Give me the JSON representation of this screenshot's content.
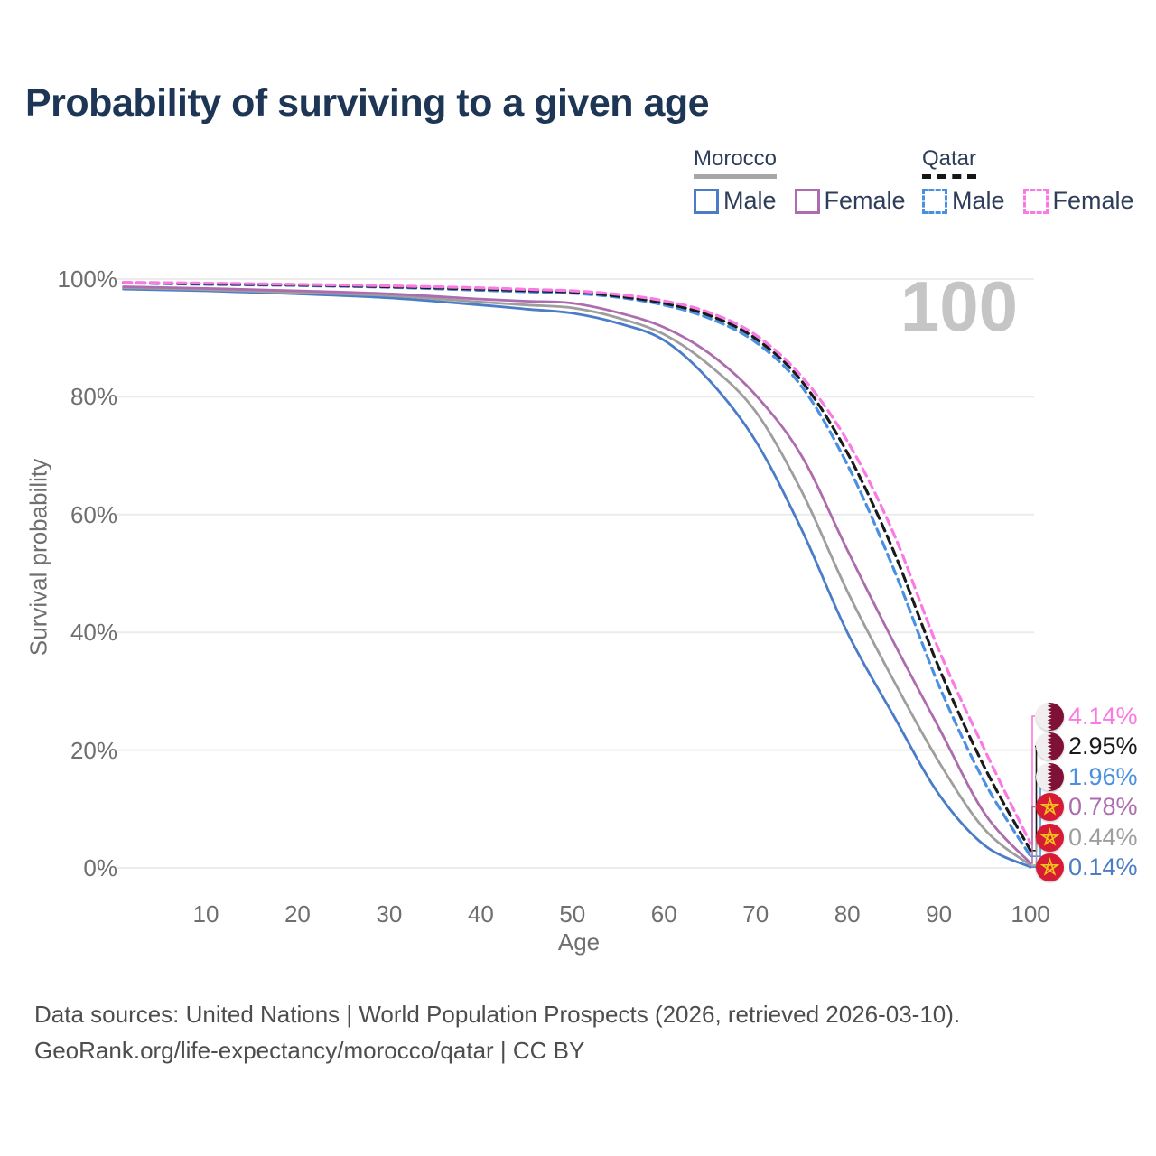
{
  "title": "Probability of surviving to a given age",
  "watermark": "100",
  "legend": {
    "groups": [
      {
        "country": "Morocco",
        "line_style": "solid",
        "items": [
          {
            "label": "Male",
            "color": "#4a7cc7"
          },
          {
            "label": "Female",
            "color": "#ad6cad"
          }
        ]
      },
      {
        "country": "Qatar",
        "line_style": "dashed",
        "items": [
          {
            "label": "Male",
            "color": "#4a90e2"
          },
          {
            "label": "Female",
            "color": "#fb79e3"
          }
        ]
      }
    ]
  },
  "chart_data": {
    "type": "line",
    "title": "Probability of surviving to a given age",
    "xlabel": "Age",
    "ylabel": "Survival probability",
    "xlim": [
      0,
      100
    ],
    "ylim": [
      0,
      100
    ],
    "grid": "horizontal",
    "x_ticks": [
      10,
      20,
      30,
      40,
      50,
      60,
      70,
      80,
      90,
      100
    ],
    "y_ticks": [
      {
        "value": 100,
        "label": "100%"
      },
      {
        "value": 80,
        "label": "80%"
      },
      {
        "value": 60,
        "label": "60%"
      },
      {
        "value": 40,
        "label": "40%"
      },
      {
        "value": 20,
        "label": "20%"
      },
      {
        "value": 0,
        "label": "0%"
      }
    ],
    "hover_age": "100",
    "x": [
      1,
      10,
      20,
      30,
      40,
      45,
      50,
      55,
      60,
      65,
      70,
      75,
      80,
      85,
      90,
      95,
      100
    ],
    "series": [
      {
        "name": "Qatar Female",
        "country": "Qatar",
        "sex": "female",
        "color": "#fb79e3",
        "dash": true,
        "flag": "qatar",
        "end_label": "4.14%",
        "values": [
          99.45,
          99.3,
          99.1,
          98.85,
          98.5,
          98.25,
          98.0,
          97.4,
          96.3,
          94.3,
          90.5,
          83.5,
          72.5,
          57.0,
          37.0,
          20.0,
          4.14
        ]
      },
      {
        "name": "Qatar Both sexes",
        "country": "Qatar",
        "sex": "all",
        "color": "#1a1a1a",
        "dash": true,
        "flag": "qatar",
        "end_label": "2.95%",
        "values": [
          99.4,
          99.2,
          99.0,
          98.7,
          98.3,
          98.05,
          97.8,
          97.1,
          95.9,
          93.8,
          89.9,
          82.7,
          70.5,
          54.0,
          34.0,
          17.0,
          2.95
        ]
      },
      {
        "name": "Qatar Male",
        "country": "Qatar",
        "sex": "male",
        "color": "#4a90e2",
        "dash": true,
        "flag": "qatar",
        "end_label": "1.96%",
        "values": [
          99.35,
          99.1,
          98.9,
          98.6,
          98.1,
          97.85,
          97.6,
          96.9,
          95.6,
          93.3,
          89.3,
          81.8,
          68.5,
          51.0,
          31.0,
          14.5,
          1.96
        ]
      },
      {
        "name": "Morocco Female",
        "country": "Morocco",
        "sex": "female",
        "color": "#ad6cad",
        "dash": false,
        "flag": "morocco",
        "end_label": "0.78%",
        "values": [
          98.7,
          98.4,
          98.0,
          97.5,
          96.6,
          96.25,
          95.9,
          94.3,
          91.8,
          87.3,
          80.3,
          70.0,
          54.0,
          38.5,
          23.8,
          9.2,
          0.78
        ]
      },
      {
        "name": "Morocco Both sexes",
        "country": "Morocco",
        "sex": "all",
        "color": "#9e9e9e",
        "dash": false,
        "flag": "morocco",
        "end_label": "0.44%",
        "values": [
          98.5,
          98.2,
          97.7,
          97.2,
          96.1,
          95.6,
          95.1,
          93.4,
          90.6,
          85.3,
          77.5,
          64.0,
          47.0,
          32.0,
          18.0,
          6.5,
          0.44
        ]
      },
      {
        "name": "Morocco Male",
        "country": "Morocco",
        "sex": "male",
        "color": "#4a7cc7",
        "dash": false,
        "flag": "morocco",
        "end_label": "0.14%",
        "values": [
          98.3,
          98.0,
          97.5,
          96.8,
          95.6,
          94.9,
          94.2,
          92.5,
          89.6,
          82.7,
          72.5,
          57.5,
          40.0,
          26.0,
          12.5,
          3.8,
          0.14
        ]
      }
    ]
  },
  "footer": {
    "line1": "Data sources: United Nations | World Population Prospects (2026, retrieved 2026-03-10).",
    "line2": "GeoRank.org/life-expectancy/morocco/qatar | CC BY"
  }
}
